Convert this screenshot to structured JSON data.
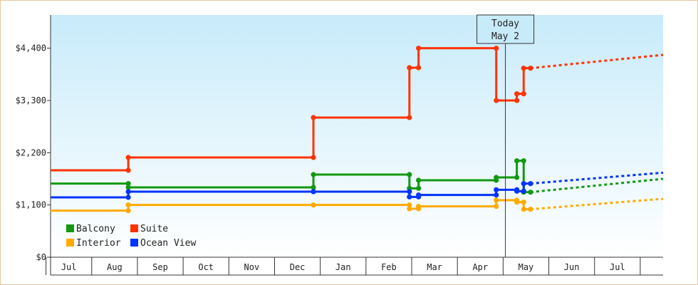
{
  "chart_data": {
    "type": "line",
    "y_ticks": [
      {
        "value": 0,
        "label": "$0"
      },
      {
        "value": 1100,
        "label": "$1,100"
      },
      {
        "value": 2200,
        "label": "$2,200"
      },
      {
        "value": 3300,
        "label": "$3,300"
      },
      {
        "value": 4400,
        "label": "$4,400"
      }
    ],
    "ylim": [
      0,
      5100
    ],
    "months": [
      "Jul",
      "Aug",
      "Sep",
      "Oct",
      "Nov",
      "Dec",
      "Jan",
      "Feb",
      "Mar",
      "Apr",
      "May",
      "Jun",
      "Jul"
    ],
    "xlim_month_index": [
      -0.4,
      13.0
    ],
    "today": {
      "line1": "Today",
      "line2": "May 2",
      "month_index": 9.55
    },
    "legend": {
      "position": "bottom-left"
    },
    "series": [
      {
        "name": "Balcony",
        "color": "#119911",
        "points": [
          [
            -0.4,
            1550
          ],
          [
            1.3,
            1550
          ],
          [
            1.3,
            1470
          ],
          [
            5.35,
            1470
          ],
          [
            5.35,
            1740
          ],
          [
            7.45,
            1740
          ],
          [
            7.45,
            1450
          ],
          [
            7.65,
            1450
          ],
          [
            7.65,
            1620
          ],
          [
            9.35,
            1620
          ],
          [
            9.35,
            1680
          ],
          [
            9.8,
            1680
          ],
          [
            9.8,
            2030
          ],
          [
            9.95,
            2030
          ],
          [
            9.95,
            1370
          ],
          [
            10.1,
            1370
          ]
        ],
        "projection": [
          [
            10.1,
            1370
          ],
          [
            13.0,
            1650
          ]
        ]
      },
      {
        "name": "Suite",
        "color": "#ff3300",
        "points": [
          [
            -0.4,
            1830
          ],
          [
            1.3,
            1830
          ],
          [
            1.3,
            2100
          ],
          [
            5.35,
            2100
          ],
          [
            5.35,
            2940
          ],
          [
            7.45,
            2940
          ],
          [
            7.45,
            3990
          ],
          [
            7.65,
            3990
          ],
          [
            7.65,
            4400
          ],
          [
            9.35,
            4400
          ],
          [
            9.35,
            3300
          ],
          [
            9.8,
            3300
          ],
          [
            9.8,
            3440
          ],
          [
            9.95,
            3440
          ],
          [
            9.95,
            3980
          ],
          [
            10.1,
            3980
          ]
        ],
        "projection": [
          [
            10.1,
            3980
          ],
          [
            13.0,
            4260
          ]
        ]
      },
      {
        "name": "Interior",
        "color": "#ffaa00",
        "points": [
          [
            -0.4,
            980
          ],
          [
            1.3,
            980
          ],
          [
            1.3,
            1100
          ],
          [
            5.35,
            1100
          ],
          [
            5.35,
            1100
          ],
          [
            7.45,
            1100
          ],
          [
            7.45,
            1020
          ],
          [
            7.65,
            1020
          ],
          [
            7.65,
            1070
          ],
          [
            9.35,
            1070
          ],
          [
            9.35,
            1200
          ],
          [
            9.8,
            1200
          ],
          [
            9.8,
            1160
          ],
          [
            9.95,
            1160
          ],
          [
            9.95,
            1010
          ],
          [
            10.1,
            1010
          ]
        ],
        "projection": [
          [
            10.1,
            1010
          ],
          [
            13.0,
            1230
          ]
        ]
      },
      {
        "name": "Ocean View",
        "color": "#0033ff",
        "points": [
          [
            -0.4,
            1260
          ],
          [
            1.3,
            1260
          ],
          [
            1.3,
            1380
          ],
          [
            5.35,
            1380
          ],
          [
            5.35,
            1380
          ],
          [
            7.45,
            1380
          ],
          [
            7.45,
            1270
          ],
          [
            7.65,
            1270
          ],
          [
            7.65,
            1310
          ],
          [
            9.35,
            1310
          ],
          [
            9.35,
            1420
          ],
          [
            9.8,
            1420
          ],
          [
            9.8,
            1390
          ],
          [
            9.95,
            1390
          ],
          [
            9.95,
            1550
          ],
          [
            10.1,
            1550
          ]
        ],
        "projection": [
          [
            10.1,
            1550
          ],
          [
            13.0,
            1780
          ]
        ]
      }
    ]
  }
}
